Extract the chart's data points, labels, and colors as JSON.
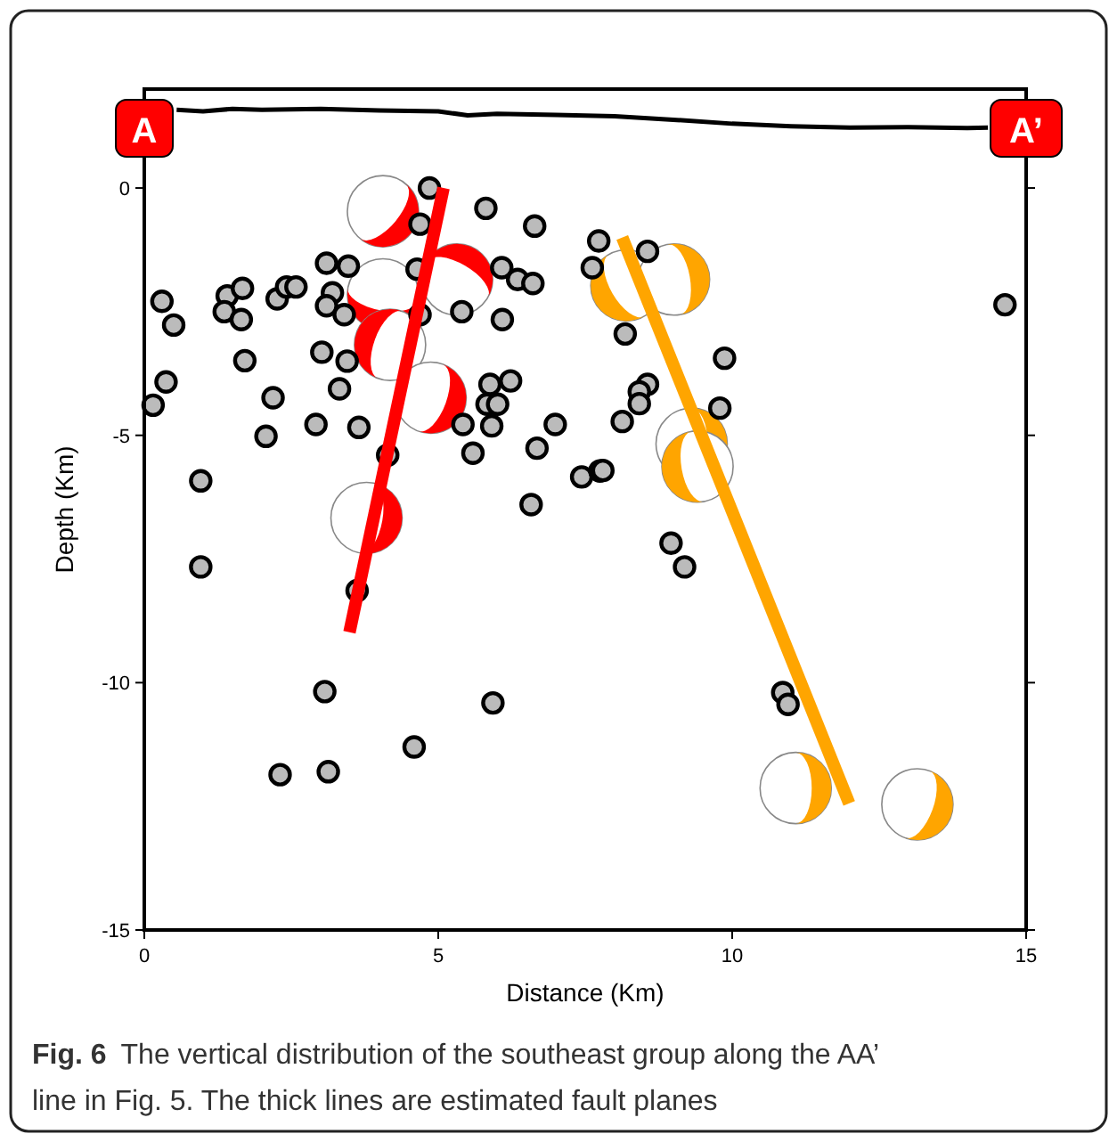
{
  "chart_data": {
    "type": "scatter",
    "xlabel": "Distance (Km)",
    "ylabel": "Depth (Km)",
    "xlim": [
      0,
      15
    ],
    "ylim": [
      -15,
      2
    ],
    "xticks": [
      0,
      5,
      10,
      15
    ],
    "yticks": [
      0,
      -5,
      -10,
      -15
    ],
    "series": [
      {
        "type": "line",
        "color": "#000000",
        "marker": "none",
        "line_style": "solid",
        "x": [
          0.55,
          1,
          1.5,
          2,
          3,
          4,
          5,
          5.5,
          6,
          7,
          8,
          9,
          10,
          11,
          12,
          13,
          14,
          14.35
        ],
        "values": [
          1.58,
          1.55,
          1.6,
          1.58,
          1.6,
          1.57,
          1.55,
          1.47,
          1.5,
          1.48,
          1.45,
          1.38,
          1.3,
          1.25,
          1.22,
          1.23,
          1.21,
          1.22
        ]
      },
      {
        "color": "#bbbbbb",
        "marker": "circle",
        "x": [
          4.85,
          5.81,
          6.64,
          4.69,
          3.1,
          3.47,
          0.3,
          0.5,
          1.41,
          1.67,
          1.36,
          1.65,
          2.26,
          2.42,
          2.58,
          3.2,
          3.1,
          3.4,
          1.71,
          3.02,
          3.45,
          0.37,
          0.15,
          2.19,
          3.32,
          2.07,
          2.92,
          3.65,
          0.96,
          4.14,
          5.42,
          5.59,
          5.91,
          5.88,
          6.23,
          5.83,
          6.01,
          6.99,
          6.68,
          6.09,
          6.08,
          6.35,
          6.61,
          5.4,
          4.69,
          4.64,
          6.58,
          7.44,
          7.75,
          7.73,
          7.62,
          8.56,
          8.18,
          9.87,
          14.64,
          8.56,
          8.42,
          8.42,
          8.13,
          9.79,
          7.8,
          8.96,
          9.19,
          0.96,
          3.62,
          3.07,
          5.93,
          4.59,
          2.31,
          3.13,
          10.86,
          10.95
        ],
        "values": [
          0,
          -0.41,
          -0.77,
          -0.73,
          -1.52,
          -1.58,
          -2.29,
          -2.77,
          -2.18,
          -2.03,
          -2.5,
          -2.66,
          -2.24,
          -2,
          -2,
          -2.12,
          -2.38,
          -2.56,
          -3.49,
          -3.32,
          -3.5,
          -3.92,
          -4.39,
          -4.24,
          -4.06,
          -5.02,
          -4.78,
          -4.84,
          -5.92,
          -5.4,
          -4.78,
          -5.36,
          -4.81,
          -3.97,
          -3.9,
          -4.37,
          -4.37,
          -4.78,
          -5.26,
          -2.66,
          -1.61,
          -1.85,
          -1.93,
          -2.5,
          -2.56,
          -1.64,
          -6.4,
          -5.84,
          -5.72,
          -1.07,
          -1.61,
          -1.28,
          -2.95,
          -3.44,
          -2.36,
          -3.97,
          -4.12,
          -4.36,
          -4.72,
          -4.45,
          -5.71,
          -7.18,
          -7.66,
          -7.66,
          -8.14,
          -10.18,
          -10.41,
          -11.3,
          -11.86,
          -11.8,
          -10.2,
          -10.44
        ]
      },
      {
        "type": "line",
        "color": "#ff0000",
        "marker": "none",
        "line_style": "solid",
        "x": [
          5.09,
          3.49
        ],
        "values": [
          0,
          -8.98
        ]
      },
      {
        "type": "line",
        "color": "#ffa500",
        "marker": "none",
        "line_style": "solid",
        "x": [
          8.13,
          11.99
        ],
        "values": [
          -1.0,
          -12.44
        ]
      }
    ],
    "annotations": [
      "A",
      "A’",
      "Fig. 6",
      "The vertical distribution of the southeast group along the AA’",
      "line in Fig. 5. The thick lines are estimated fault planes"
    ]
  }
}
